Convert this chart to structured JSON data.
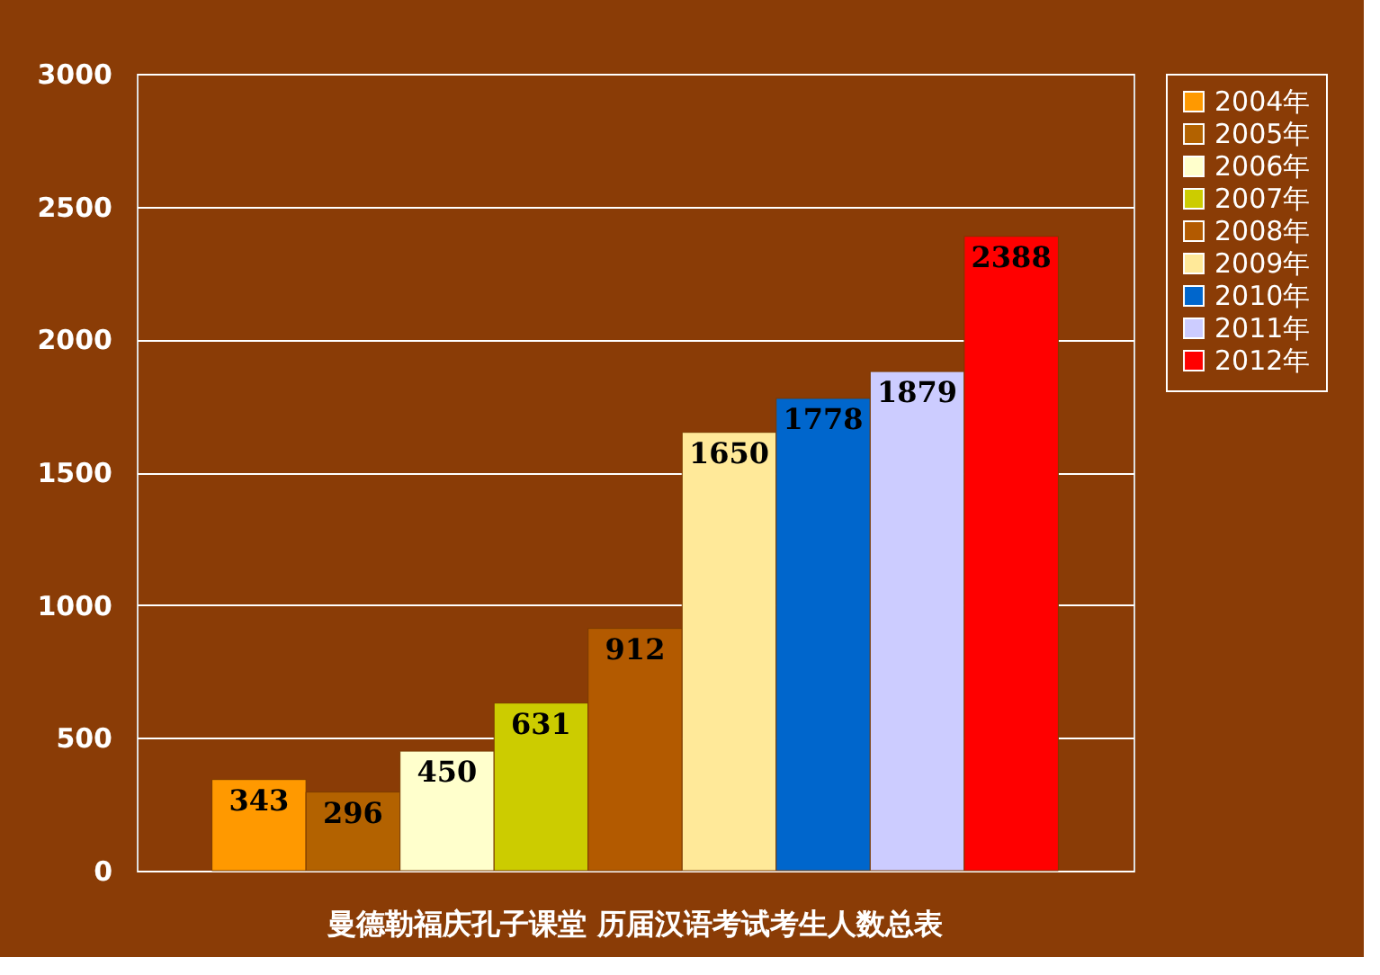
{
  "chart_data": {
    "type": "bar",
    "title": "曼德勒福庆孔子课堂 历届汉语考试考生人数总表",
    "categories": [
      null
    ],
    "series": [
      {
        "name": "2004年",
        "color": "#ff9900",
        "values": [
          343
        ]
      },
      {
        "name": "2005年",
        "color": "#b36200",
        "values": [
          296
        ]
      },
      {
        "name": "2006年",
        "color": "#ffffcc",
        "values": [
          450
        ]
      },
      {
        "name": "2007年",
        "color": "#cccc00",
        "values": [
          631
        ]
      },
      {
        "name": "2008年",
        "color": "#b35a00",
        "values": [
          912
        ]
      },
      {
        "name": "2009年",
        "color": "#ffe999",
        "values": [
          1650
        ]
      },
      {
        "name": "2010年",
        "color": "#0066cc",
        "values": [
          1778
        ]
      },
      {
        "name": "2011年",
        "color": "#ccccff",
        "values": [
          1879
        ]
      },
      {
        "name": "2012年",
        "color": "#ff0000",
        "values": [
          2388
        ]
      }
    ],
    "ylim": [
      0,
      3000
    ],
    "yticks": [
      0,
      500,
      1000,
      1500,
      2000,
      2500,
      3000
    ],
    "grid": "y",
    "legend": "right",
    "data_labels": true
  }
}
